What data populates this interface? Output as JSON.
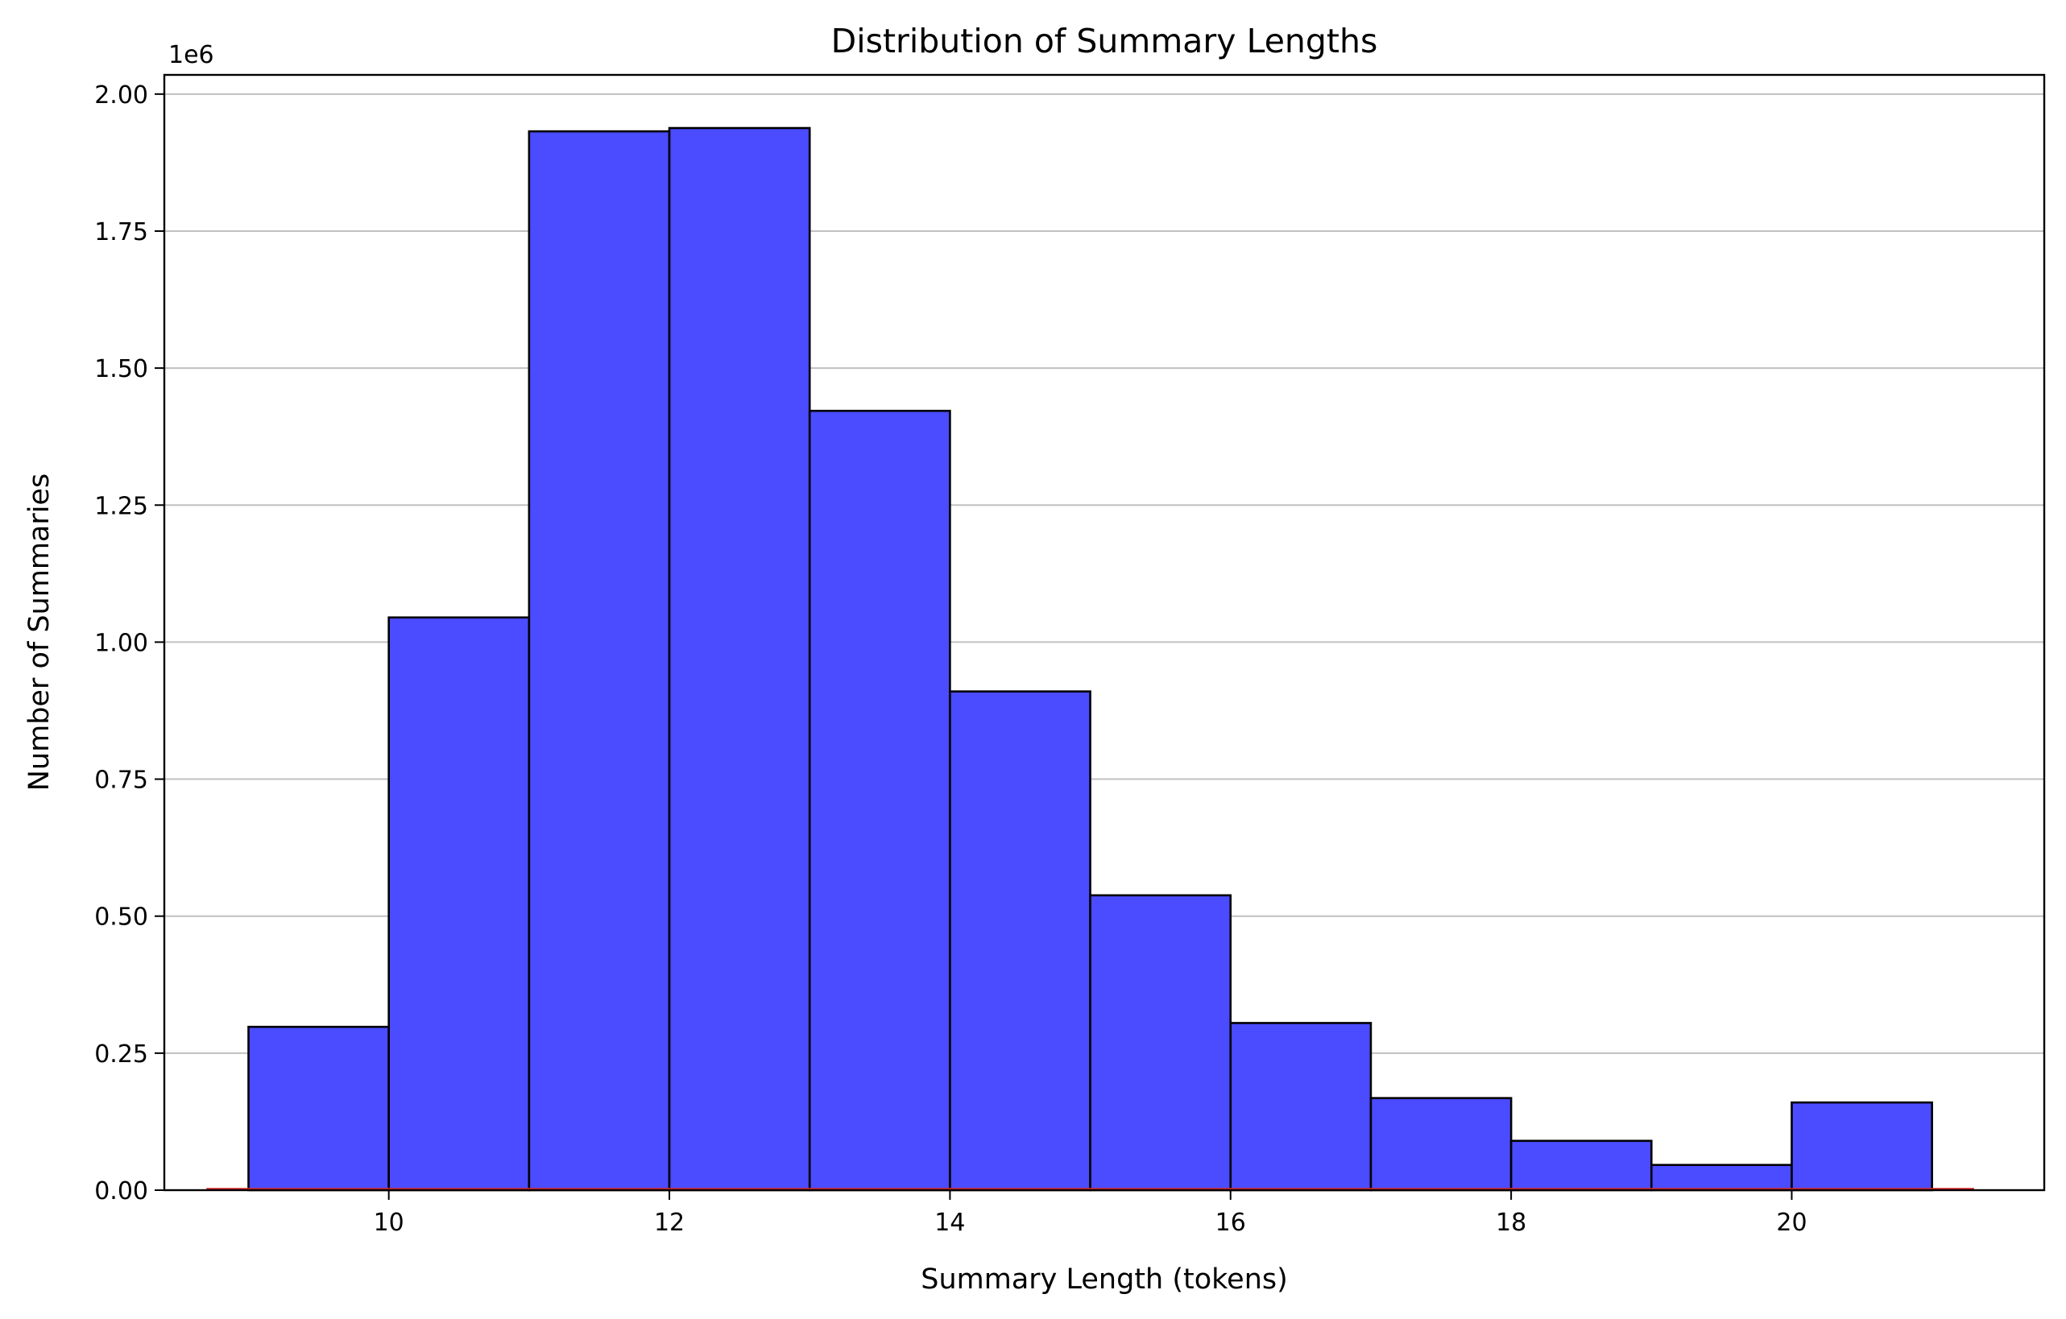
{
  "chart_data": {
    "type": "bar",
    "title": "Distribution of Summary Lengths",
    "xlabel": "Summary Length (tokens)",
    "ylabel": "Number of Summaries",
    "y_offset_label": "1e6",
    "bin_edges": [
      9,
      10,
      11,
      12,
      13,
      14,
      15,
      16,
      17,
      18,
      19,
      20,
      21
    ],
    "values": [
      0.298,
      1.045,
      1.932,
      1.938,
      1.422,
      0.91,
      0.538,
      0.305,
      0.168,
      0.09,
      0.046,
      0.16
    ],
    "value_scale": 1000000,
    "xlim": [
      8.4,
      21.8
    ],
    "ylim": [
      0,
      2.035
    ],
    "x_ticks": [
      10,
      12,
      14,
      16,
      18,
      20
    ],
    "x_tick_labels": [
      "10",
      "12",
      "14",
      "16",
      "18",
      "20"
    ],
    "y_ticks": [
      0,
      0.25,
      0.5,
      0.75,
      1.0,
      1.25,
      1.5,
      1.75,
      2.0
    ],
    "y_tick_labels": [
      "0.00",
      "0.25",
      "0.50",
      "0.75",
      "1.00",
      "1.25",
      "1.50",
      "1.75",
      "2.00"
    ],
    "grid": "horizontal",
    "baseline_line": {
      "x_range": [
        8.7,
        21.3
      ],
      "value": 0,
      "color": "#d62728"
    },
    "colors": {
      "bar_fill": "#4b4bff",
      "bar_edge": "#000000",
      "grid": "#c0c0c0"
    }
  }
}
